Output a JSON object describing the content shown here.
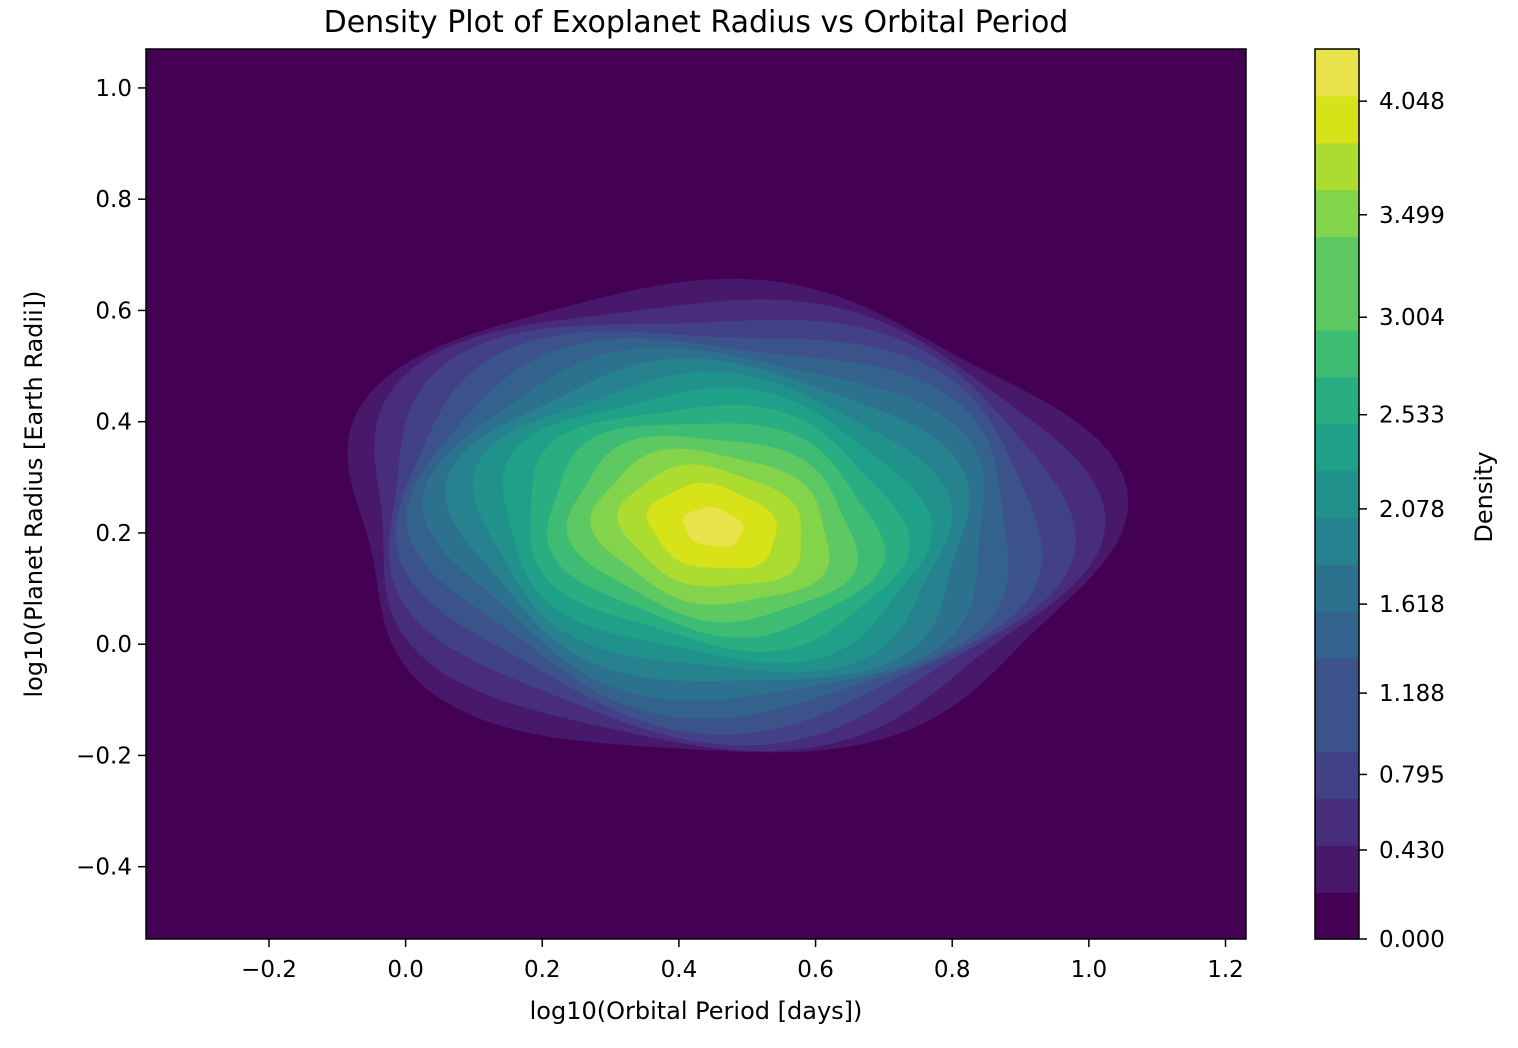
{
  "chart_data": {
    "type": "heatmap",
    "title": "Density Plot of Exoplanet Radius vs Orbital Period",
    "xlabel": "log10(Orbital Period [days])",
    "ylabel": "log10(Planet Radius [Earth Radii])",
    "xlim": [
      -0.38,
      1.23
    ],
    "ylim": [
      -0.53,
      1.07
    ],
    "x_ticks": [
      -0.2,
      0.0,
      0.2,
      0.4,
      0.6,
      0.8,
      1.0,
      1.2
    ],
    "x_tick_labels": [
      "−0.2",
      "0.0",
      "0.2",
      "0.4",
      "0.6",
      "0.8",
      "1.0",
      "1.2"
    ],
    "y_ticks": [
      -0.4,
      -0.2,
      0.0,
      0.2,
      0.4,
      0.6,
      0.8,
      1.0
    ],
    "y_tick_labels": [
      "−0.4",
      "−0.2",
      "0.0",
      "0.2",
      "0.4",
      "0.6",
      "0.8",
      "1.0"
    ],
    "grid": false,
    "density_peak": {
      "x": 0.45,
      "y": 0.21,
      "density": 4.2
    },
    "density_extent": {
      "x": [
        -0.1,
        1.02
      ],
      "y": [
        -0.2,
        0.65
      ]
    },
    "colorbar": {
      "label": "Density",
      "range": [
        0.0,
        4.3
      ],
      "ticks": [
        0.0,
        0.43,
        0.795,
        1.188,
        1.618,
        2.078,
        2.533,
        3.004,
        3.499,
        4.048
      ],
      "tick_labels": [
        "0.000",
        "0.430",
        "0.795",
        "1.188",
        "1.618",
        "2.078",
        "2.533",
        "3.004",
        "3.499",
        "4.048"
      ],
      "colors": [
        "#440154",
        "#481467",
        "#482576",
        "#463480",
        "#414487",
        "#3b528b",
        "#355f8d",
        "#2f6c8e",
        "#2a788e",
        "#25848e",
        "#21918c",
        "#1e9c89",
        "#22a884",
        "#2fb47c",
        "#44bf70",
        "#5ec962",
        "#7ad151",
        "#9bd93c",
        "#bddf26",
        "#dfe318",
        "#fde725"
      ],
      "levels": 19,
      "shown_colors": [
        "#440154",
        "#48186a",
        "#472d7b",
        "#424086",
        "#3b528b",
        "#33638d",
        "#2c728e",
        "#26828e",
        "#21918c",
        "#1fa088",
        "#28ae80",
        "#3fbc73",
        "#5ec962",
        "#84d44b",
        "#addc30",
        "#d8e219",
        "#e8e34a"
      ]
    }
  }
}
